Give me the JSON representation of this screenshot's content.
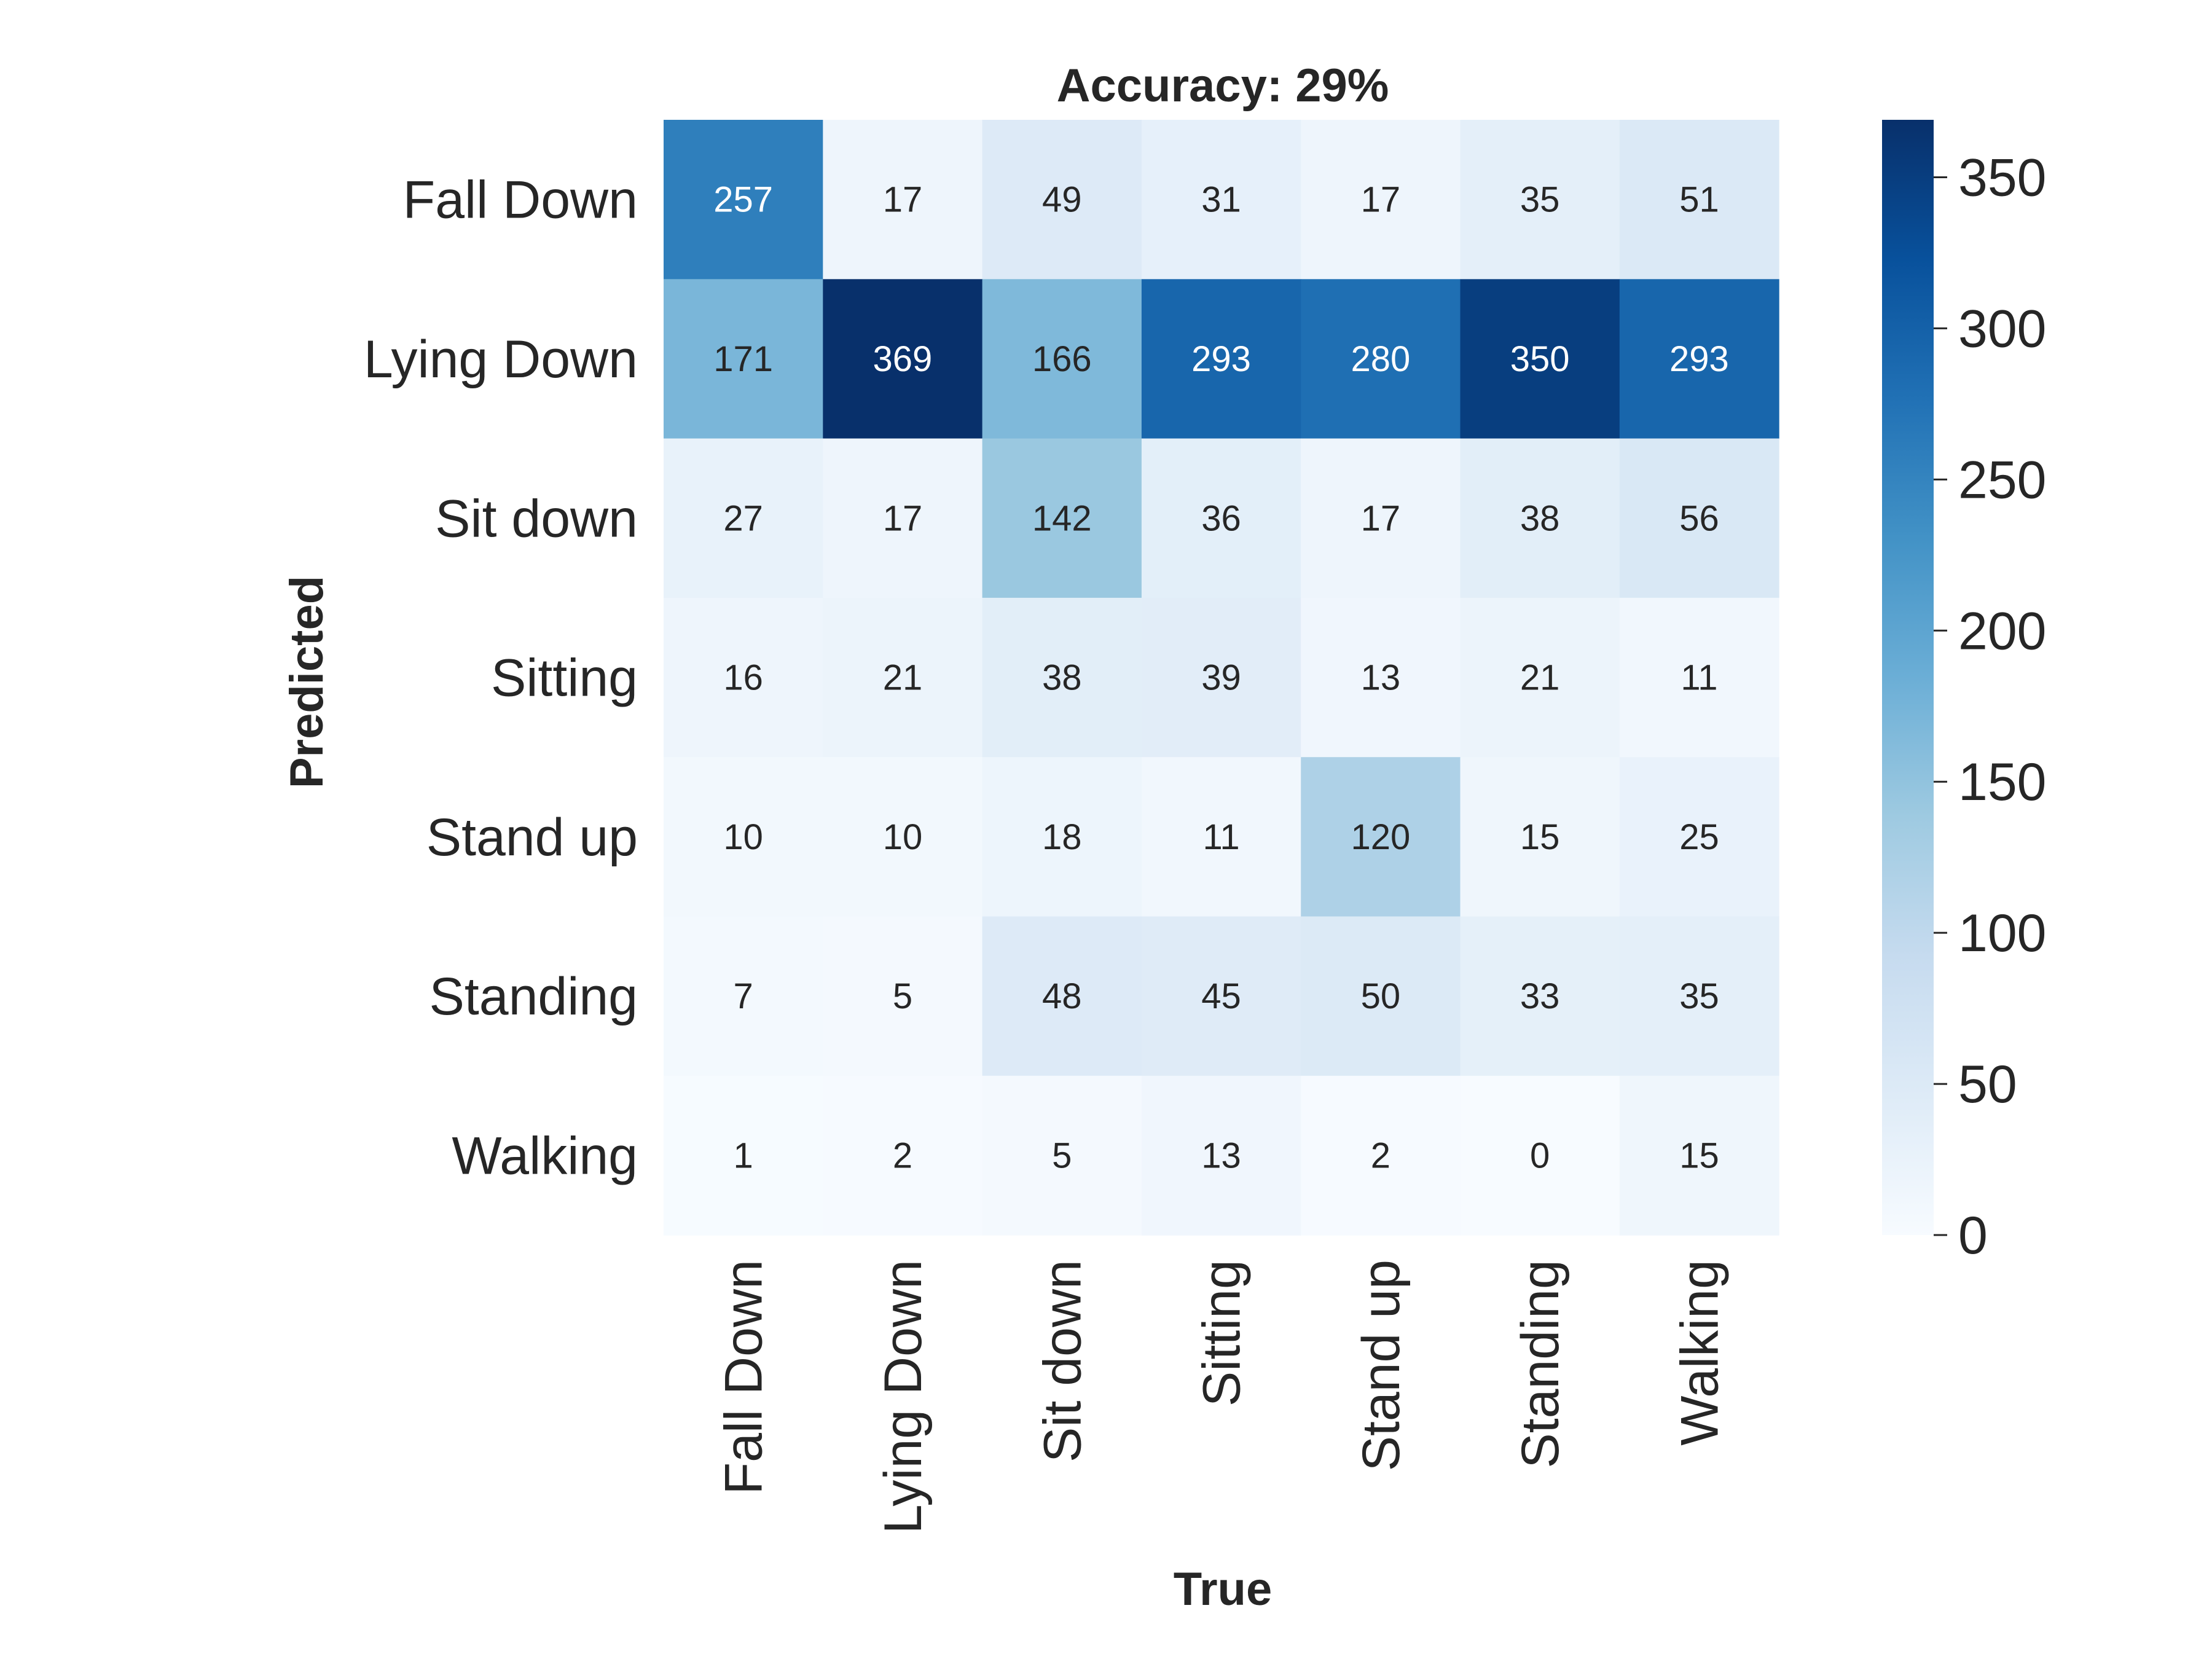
{
  "chart_data": {
    "type": "heatmap",
    "title": "Accuracy: 29%",
    "xlabel": "True",
    "ylabel": "Predicted",
    "x_categories": [
      "Fall Down",
      "Lying Down",
      "Sit down",
      "Sitting",
      "Stand up",
      "Standing",
      "Walking"
    ],
    "y_categories": [
      "Fall Down",
      "Lying Down",
      "Sit down",
      "Sitting",
      "Stand up",
      "Standing",
      "Walking"
    ],
    "values": [
      [
        257,
        17,
        49,
        31,
        17,
        35,
        51
      ],
      [
        171,
        369,
        166,
        293,
        280,
        350,
        293
      ],
      [
        27,
        17,
        142,
        36,
        17,
        38,
        56
      ],
      [
        16,
        21,
        38,
        39,
        13,
        21,
        11
      ],
      [
        10,
        10,
        18,
        11,
        120,
        15,
        25
      ],
      [
        7,
        5,
        48,
        45,
        50,
        33,
        35
      ],
      [
        1,
        2,
        5,
        13,
        2,
        0,
        15
      ]
    ],
    "colormap": "Blues",
    "color_range": [
      0,
      369
    ],
    "colorbar_ticks": [
      0,
      50,
      100,
      150,
      200,
      250,
      300,
      350
    ],
    "grid": false,
    "legend": "colorbar-right"
  }
}
